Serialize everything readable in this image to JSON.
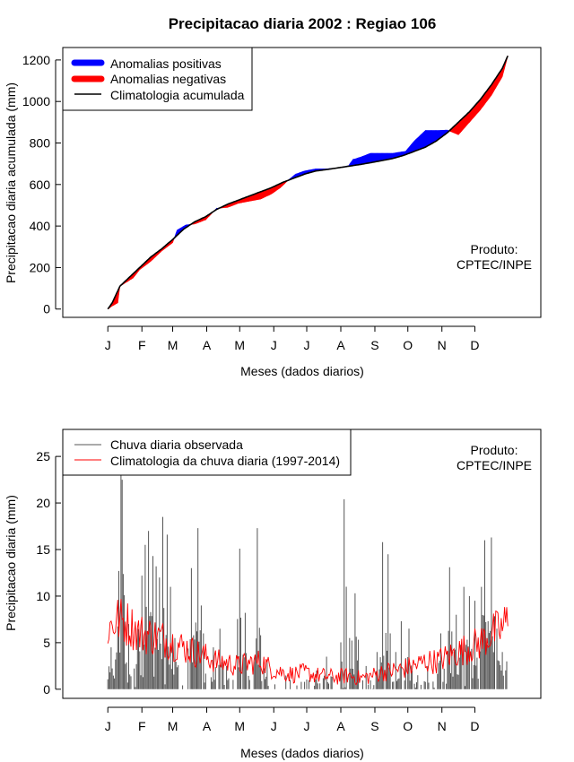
{
  "title": "Precipitacao diaria 2002 : Regiao 106",
  "product_line1": "Produto:",
  "product_line2": "CPTEC/INPE",
  "colors": {
    "positive": "#0000ff",
    "negative": "#ff0000",
    "observed": "#555555",
    "climatology": "#ff0000"
  },
  "month_labels": [
    "J",
    "F",
    "M",
    "A",
    "M",
    "J",
    "J",
    "A",
    "S",
    "O",
    "N",
    "D"
  ],
  "chart_data": [
    {
      "type": "area",
      "ylabel": "Precipitacao diaria acumulada (mm)",
      "xlabel": "Meses (dados diarios)",
      "yticks": [
        0,
        200,
        400,
        600,
        800,
        1000,
        1200
      ],
      "ylim": [
        -40,
        1260
      ],
      "xlim": [
        -40,
        395
      ],
      "legend": [
        {
          "label": "Anomalias positivas",
          "type": "bar",
          "color": "#0000ff"
        },
        {
          "label": "Anomalias negativas",
          "type": "bar",
          "color": "#ff0000"
        },
        {
          "label": "Climatologia acumulada",
          "type": "line",
          "color": "#000000"
        }
      ],
      "climatology_keys": {
        "day": [
          1,
          5,
          12,
          20,
          30,
          40,
          50,
          60,
          70,
          80,
          90,
          100,
          110,
          120,
          130,
          140,
          150,
          160,
          170,
          180,
          190,
          200,
          210,
          220,
          230,
          240,
          250,
          260,
          270,
          280,
          290,
          300,
          310,
          320,
          330,
          340,
          350,
          360,
          365
        ],
        "value": [
          0,
          30,
          110,
          150,
          200,
          250,
          290,
          335,
          385,
          420,
          445,
          480,
          505,
          525,
          545,
          565,
          585,
          610,
          630,
          650,
          665,
          672,
          680,
          688,
          696,
          705,
          715,
          725,
          740,
          760,
          780,
          810,
          850,
          900,
          950,
          1010,
          1080,
          1160,
          1220
        ]
      },
      "observed_keys": {
        "day": [
          1,
          5,
          10,
          12,
          18,
          24,
          30,
          40,
          50,
          60,
          64,
          72,
          80,
          90,
          100,
          110,
          120,
          130,
          140,
          150,
          158,
          165,
          172,
          180,
          190,
          200,
          210,
          220,
          224,
          230,
          240,
          250,
          260,
          272,
          280,
          290,
          300,
          310,
          320,
          330,
          340,
          350,
          360,
          365
        ],
        "value": [
          0,
          15,
          30,
          110,
          130,
          150,
          190,
          230,
          280,
          320,
          380,
          405,
          410,
          430,
          485,
          490,
          510,
          520,
          530,
          555,
          585,
          620,
          650,
          665,
          675,
          675,
          680,
          690,
          720,
          730,
          750,
          750,
          750,
          760,
          810,
          860,
          860,
          862,
          840,
          900,
          960,
          1030,
          1120,
          1220
        ]
      }
    },
    {
      "type": "bar",
      "ylabel": "Precipitacao diaria (mm)",
      "xlabel": "Meses (dados diarios)",
      "yticks": [
        0,
        5,
        10,
        15,
        20,
        25
      ],
      "ylim": [
        -0.98,
        27.9
      ],
      "xlim": [
        -40,
        395
      ],
      "legend": [
        {
          "label": "Chuva diaria observada",
          "type": "line",
          "color": "#555555"
        },
        {
          "label": "Climatologia da chuva diaria (1997-2014)",
          "type": "line",
          "color": "#ff0000"
        }
      ],
      "observed_peaks": [
        {
          "day": 4,
          "value": 4.5
        },
        {
          "day": 8,
          "value": 3.2
        },
        {
          "day": 11,
          "value": 12.7
        },
        {
          "day": 13,
          "value": 23.0
        },
        {
          "day": 14,
          "value": 22.5
        },
        {
          "day": 16,
          "value": 10.0
        },
        {
          "day": 20,
          "value": 7.0
        },
        {
          "day": 28,
          "value": 6.5
        },
        {
          "day": 32,
          "value": 12.2
        },
        {
          "day": 35,
          "value": 15.5
        },
        {
          "day": 38,
          "value": 17.0
        },
        {
          "day": 42,
          "value": 14.3
        },
        {
          "day": 45,
          "value": 13.2
        },
        {
          "day": 48,
          "value": 12.0
        },
        {
          "day": 51,
          "value": 18.5
        },
        {
          "day": 55,
          "value": 16.6
        },
        {
          "day": 58,
          "value": 11.0
        },
        {
          "day": 62,
          "value": 5.5
        },
        {
          "day": 77,
          "value": 13.0
        },
        {
          "day": 83,
          "value": 17.3
        },
        {
          "day": 88,
          "value": 6.0
        },
        {
          "day": 97,
          "value": 4.5
        },
        {
          "day": 103,
          "value": 6.5
        },
        {
          "day": 109,
          "value": 2.5
        },
        {
          "day": 121,
          "value": 15.1
        },
        {
          "day": 126,
          "value": 8.2
        },
        {
          "day": 137,
          "value": 17.3
        },
        {
          "day": 140,
          "value": 5.8
        },
        {
          "day": 146,
          "value": 3.0
        },
        {
          "day": 191,
          "value": 2.0
        },
        {
          "day": 200,
          "value": 3.5
        },
        {
          "day": 216,
          "value": 20.4
        },
        {
          "day": 221,
          "value": 5.5
        },
        {
          "day": 226,
          "value": 10.3
        },
        {
          "day": 236,
          "value": 2.5
        },
        {
          "day": 246,
          "value": 4.0
        },
        {
          "day": 251,
          "value": 15.8
        },
        {
          "day": 256,
          "value": 14.5
        },
        {
          "day": 263,
          "value": 4.0
        },
        {
          "day": 268,
          "value": 7.3
        },
        {
          "day": 275,
          "value": 6.5
        },
        {
          "day": 283,
          "value": 1.5
        },
        {
          "day": 292,
          "value": 2.5
        },
        {
          "day": 304,
          "value": 6.0
        },
        {
          "day": 312,
          "value": 13.1
        },
        {
          "day": 318,
          "value": 8.0
        },
        {
          "day": 325,
          "value": 11.0
        },
        {
          "day": 330,
          "value": 10.0
        },
        {
          "day": 335,
          "value": 9.5
        },
        {
          "day": 341,
          "value": 11.0
        },
        {
          "day": 344,
          "value": 16.0
        },
        {
          "day": 350,
          "value": 16.3
        },
        {
          "day": 355,
          "value": 6.5
        },
        {
          "day": 360,
          "value": 4.0
        },
        {
          "day": 364,
          "value": 3.0
        }
      ],
      "climatology_keys": {
        "day": [
          1,
          10,
          20,
          30,
          40,
          50,
          60,
          70,
          80,
          90,
          100,
          110,
          120,
          130,
          140,
          150,
          160,
          170,
          180,
          190,
          200,
          210,
          220,
          230,
          240,
          250,
          260,
          270,
          280,
          290,
          300,
          310,
          320,
          330,
          340,
          350,
          360,
          365
        ],
        "value": [
          6.5,
          7.5,
          7.0,
          6.0,
          5.8,
          5.5,
          5.0,
          4.5,
          4.0,
          3.5,
          3.0,
          2.8,
          2.5,
          2.8,
          3.0,
          2.2,
          1.8,
          1.6,
          1.8,
          1.5,
          1.4,
          1.3,
          1.5,
          1.2,
          1.4,
          1.8,
          2.0,
          2.2,
          2.5,
          3.0,
          3.0,
          3.5,
          4.0,
          4.5,
          5.0,
          6.0,
          6.5,
          7.5
        ]
      }
    }
  ]
}
